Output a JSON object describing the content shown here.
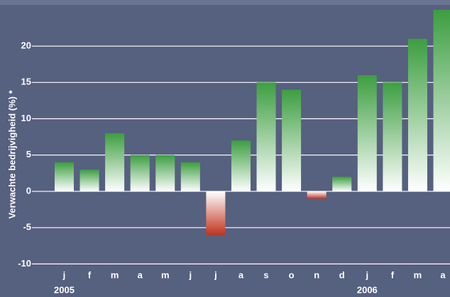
{
  "chart_data": {
    "type": "bar",
    "y_label": "Verwachte bedrijvigheid (%) *",
    "categories": [
      "j",
      "f",
      "m",
      "a",
      "m",
      "j",
      "j",
      "a",
      "s",
      "o",
      "n",
      "d",
      "j",
      "f",
      "m",
      "a"
    ],
    "values": [
      4,
      3,
      8,
      5,
      5,
      4,
      -6,
      7,
      15,
      14,
      -1,
      2,
      16,
      15,
      21,
      25
    ],
    "groups": [
      {
        "label": "2005",
        "start": 0
      },
      {
        "label": "2006",
        "start": 12
      }
    ],
    "colors": {
      "positive": "#3c9e40",
      "negative": "#c2321d"
    },
    "ylim": [
      -10,
      26
    ],
    "yticks": [
      -10,
      -5,
      0,
      5,
      10,
      15,
      20
    ],
    "grid": true
  }
}
